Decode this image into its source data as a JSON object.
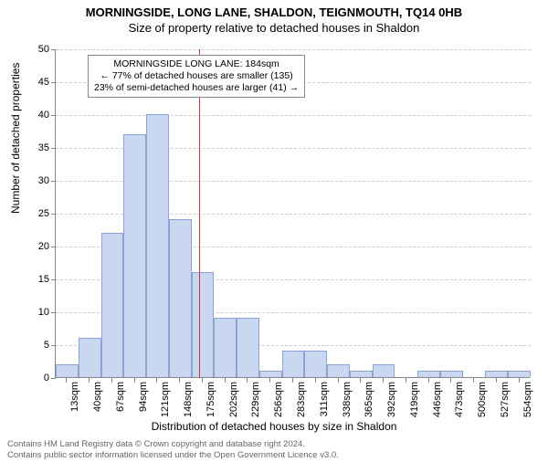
{
  "title_line1": "MORNINGSIDE, LONG LANE, SHALDON, TEIGNMOUTH, TQ14 0HB",
  "title_line2": "Size of property relative to detached houses in Shaldon",
  "ylabel": "Number of detached properties",
  "xlabel": "Distribution of detached houses by size in Shaldon",
  "chart": {
    "type": "histogram",
    "ylim": [
      0,
      50
    ],
    "ytick_step": 5,
    "bar_color": "#c9d8f0",
    "bar_border": "#8aa4d6",
    "grid_color": "#cccccc",
    "axis_color": "#888888",
    "vline_color": "#cc3333",
    "vline_x_index": 6.35,
    "x_labels": [
      "13sqm",
      "40sqm",
      "67sqm",
      "94sqm",
      "121sqm",
      "148sqm",
      "175sqm",
      "202sqm",
      "229sqm",
      "256sqm",
      "283sqm",
      "311sqm",
      "338sqm",
      "365sqm",
      "392sqm",
      "419sqm",
      "446sqm",
      "473sqm",
      "500sqm",
      "527sqm",
      "554sqm"
    ],
    "values": [
      2,
      6,
      22,
      37,
      40,
      24,
      16,
      9,
      9,
      1,
      4,
      4,
      2,
      1,
      2,
      0,
      1,
      1,
      0,
      1,
      1
    ]
  },
  "annotation": {
    "line1": "MORNINGSIDE LONG LANE: 184sqm",
    "line2": "← 77% of detached houses are smaller (135)",
    "line3": "23% of semi-detached houses are larger (41) →"
  },
  "footer_line1": "Contains HM Land Registry data © Crown copyright and database right 2024.",
  "footer_line2": "Contains public sector information licensed under the Open Government Licence v3.0."
}
